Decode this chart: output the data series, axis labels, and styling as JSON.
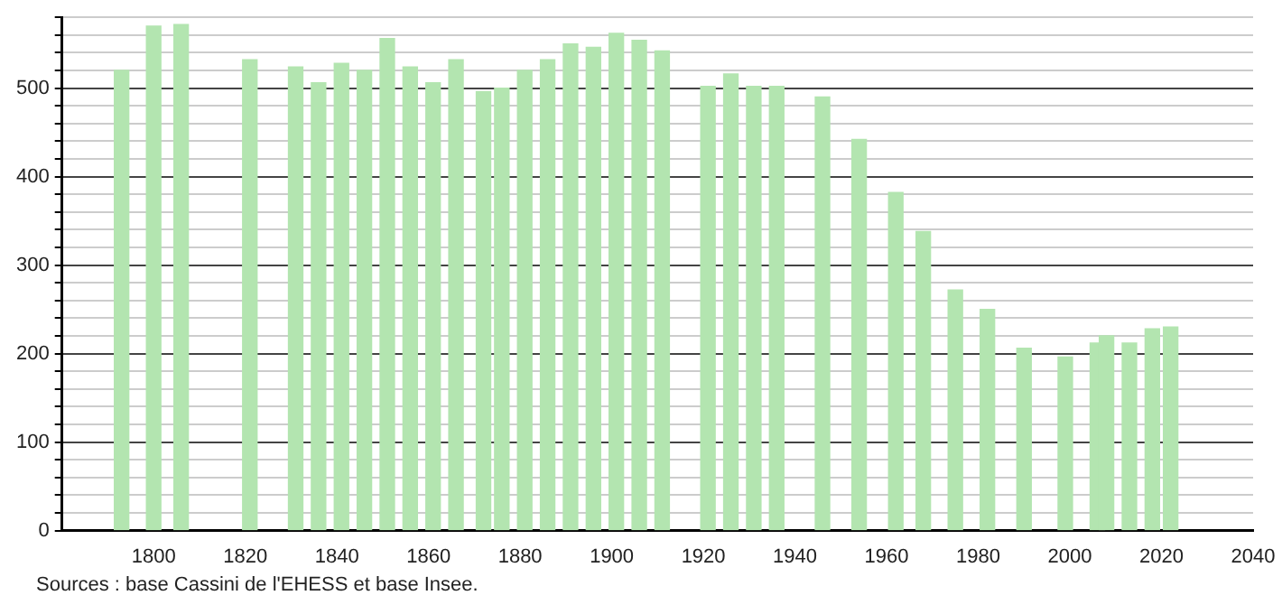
{
  "chart_data": {
    "type": "bar",
    "color": "#b3e5b0",
    "x": [
      1793,
      1800,
      1806,
      1821,
      1831,
      1836,
      1841,
      1846,
      1851,
      1856,
      1861,
      1866,
      1872,
      1876,
      1881,
      1886,
      1891,
      1896,
      1901,
      1906,
      1911,
      1921,
      1926,
      1931,
      1936,
      1946,
      1954,
      1962,
      1968,
      1975,
      1982,
      1990,
      1999,
      2006,
      2008,
      2013,
      2018,
      2022
    ],
    "values": [
      520,
      570,
      572,
      532,
      524,
      506,
      528,
      520,
      556,
      524,
      506,
      532,
      496,
      500,
      520,
      532,
      550,
      546,
      562,
      554,
      542,
      502,
      516,
      502,
      502,
      490,
      442,
      382,
      338,
      272,
      250,
      206,
      196,
      212,
      220,
      212,
      228,
      230
    ],
    "xlim": [
      1780,
      2040
    ],
    "xticks": [
      1800,
      1820,
      1840,
      1860,
      1880,
      1900,
      1920,
      1940,
      1960,
      1980,
      2000,
      2020,
      2040
    ],
    "ylim": [
      0,
      580
    ],
    "yticks": [
      0,
      {
        "value": 20,
        "label": null
      },
      {
        "value": 40,
        "label": null
      },
      {
        "value": 60,
        "label": null
      },
      {
        "value": 80,
        "label": null
      },
      100,
      {
        "value": 120,
        "label": null
      },
      {
        "value": 140,
        "label": null
      },
      {
        "value": 160,
        "label": null
      },
      {
        "value": 180,
        "label": null
      },
      200,
      {
        "value": 220,
        "label": null
      },
      {
        "value": 240,
        "label": null
      },
      {
        "value": 260,
        "label": null
      },
      {
        "value": 280,
        "label": null
      },
      300,
      {
        "value": 320,
        "label": null
      },
      {
        "value": 340,
        "label": null
      },
      {
        "value": 360,
        "label": null
      },
      {
        "value": 380,
        "label": null
      },
      400,
      {
        "value": 420,
        "label": null
      },
      {
        "value": 440,
        "label": null
      },
      {
        "value": 460,
        "label": null
      },
      {
        "value": 480,
        "label": null
      },
      500,
      {
        "value": 520,
        "label": null
      },
      {
        "value": 540,
        "label": null
      },
      {
        "value": 560,
        "label": null
      },
      {
        "value": 580,
        "label": null
      }
    ],
    "grid": "y",
    "legend": false,
    "annotations": [
      "Sources : base Cassini de l'EHESS et base Insee."
    ]
  }
}
